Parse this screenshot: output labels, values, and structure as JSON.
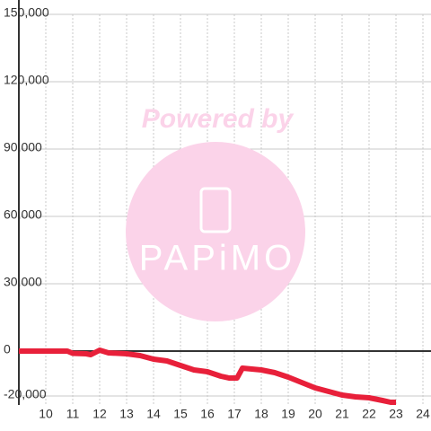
{
  "chart_data": {
    "type": "line",
    "x": [
      9,
      10,
      10.8,
      11,
      11.5,
      11.67,
      12,
      12.33,
      13,
      13.5,
      14,
      14.5,
      15,
      15.5,
      16,
      16.5,
      16.8,
      17.1,
      17.3,
      18,
      18.5,
      19,
      19.5,
      20,
      20.5,
      21,
      21.5,
      22,
      22.5,
      22.8,
      23
    ],
    "series": [
      {
        "color": "#e8203a",
        "values": [
          0,
          0,
          0,
          -1000,
          -1200,
          -1600,
          400,
          -800,
          -1200,
          -2000,
          -3600,
          -4400,
          -6400,
          -8400,
          -9200,
          -11200,
          -12000,
          -12000,
          -7600,
          -8400,
          -9600,
          -11600,
          -14000,
          -16400,
          -18000,
          -19600,
          -20400,
          -20800,
          -22000,
          -22800,
          -22800
        ]
      }
    ],
    "xlim": [
      9,
      24.3
    ],
    "xticks": [
      10,
      11,
      12,
      13,
      14,
      15,
      16,
      17,
      18,
      19,
      20,
      21,
      22,
      23,
      24
    ],
    "ylim": [
      -24000,
      150000
    ],
    "yticks": [
      {
        "value": -20000,
        "label": "-20,000"
      },
      0,
      {
        "value": 30000,
        "label": "30,000"
      },
      {
        "value": 60000,
        "label": "60,000"
      },
      {
        "value": 90000,
        "label": "90,000"
      },
      {
        "value": 120000,
        "label": "120,000"
      },
      {
        "value": 150000,
        "label": "150,000"
      }
    ],
    "grid": true,
    "annotations": [
      "Powered by",
      "PAPiMO"
    ]
  }
}
